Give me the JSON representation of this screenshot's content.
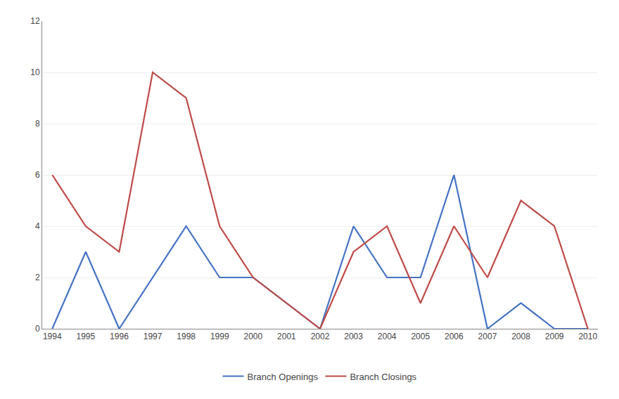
{
  "chart_data": {
    "type": "line",
    "x": [
      1994,
      1995,
      1996,
      1997,
      1998,
      1999,
      2000,
      2001,
      2002,
      2003,
      2004,
      2005,
      2006,
      2007,
      2008,
      2009,
      2010
    ],
    "series": [
      {
        "name": "Branch Openings",
        "color": "#4472C4",
        "values": [
          0,
          3,
          0,
          2,
          4,
          2,
          2,
          1,
          0,
          4,
          2,
          2,
          6,
          0,
          1,
          0,
          0
        ]
      },
      {
        "name": "Branch Closings",
        "color": "#BE4B48",
        "values": [
          6,
          4,
          3,
          10,
          9,
          4,
          2,
          1,
          0,
          3,
          4,
          1,
          4,
          2,
          5,
          4,
          0
        ]
      }
    ],
    "xlim": [
      1993.7,
      2010.3
    ],
    "xticks": [
      1994,
      1995,
      1996,
      1997,
      1998,
      1999,
      2000,
      2001,
      2002,
      2003,
      2004,
      2005,
      2006,
      2007,
      2008,
      2009,
      2010
    ],
    "ylim": [
      0,
      12
    ],
    "yticks": [
      0,
      2,
      4,
      6,
      8,
      10,
      12
    ],
    "grid": true,
    "legend": "bottom"
  }
}
